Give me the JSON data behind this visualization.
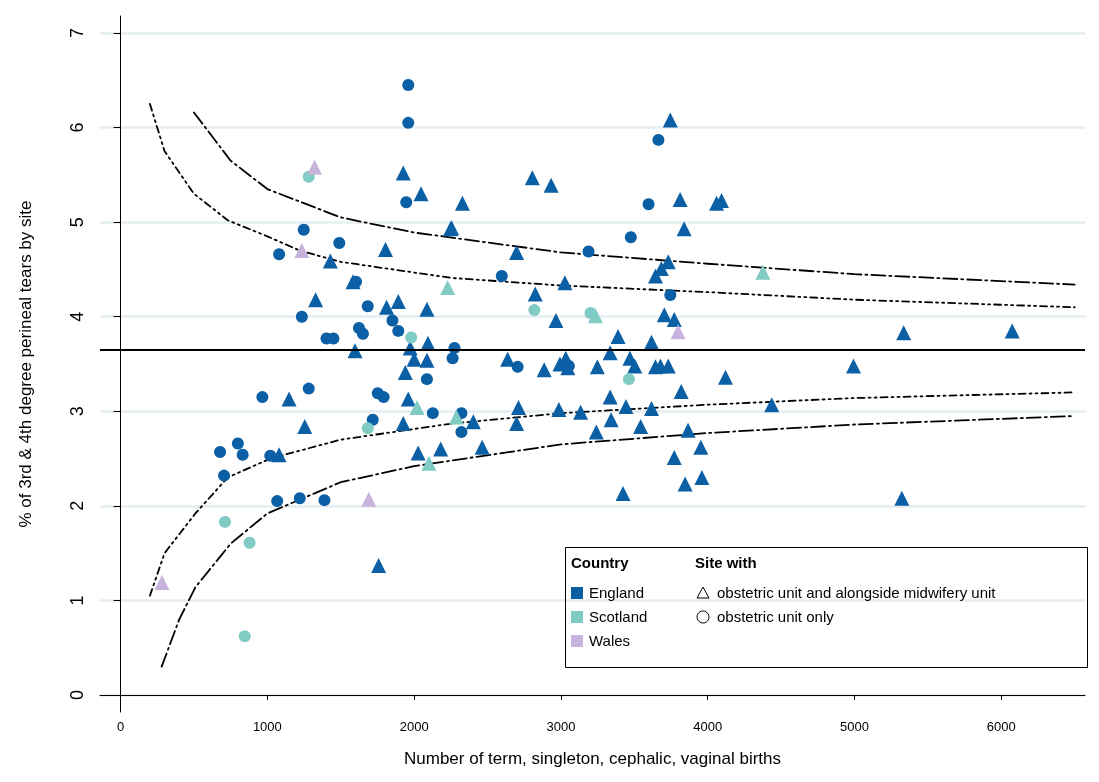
{
  "chart_data": {
    "type": "scatter",
    "xlabel": "Number of term, singleton, cephalic, vaginal births",
    "ylabel": "% of 3rd & 4th degree perineal tears by site",
    "legend_title": "Country",
    "legend": "bottom right",
    "grid": "y",
    "xlim": [
      -140,
      6570
    ],
    "xticks": [
      0,
      1000,
      2000,
      3000,
      4000,
      5000,
      6000
    ],
    "ylim": [
      -0.18,
      7.18
    ],
    "yticks": [
      0,
      1,
      2,
      3,
      4,
      5,
      6,
      7
    ],
    "annotations": [
      "Site with",
      "obstetric unit and alongside midwifery unit",
      "obstetric unit only"
    ],
    "ref_lines": [
      {
        "axis": "y",
        "value": 3.65,
        "color": "#000000",
        "line_style": "solid"
      }
    ],
    "series": [
      {
        "name": "England",
        "color": "#0b5fa5",
        "marker": "triangle",
        "x": [
          1926,
          2047,
          2248,
          1805,
          1429,
          1584,
          1329,
          1812,
          1892,
          2087,
          1597,
          1973,
          2094,
          2000,
          2087,
          1940,
          1960,
          1148,
          1926,
          1255,
          2027,
          2181,
          1080,
          1758,
          3745,
          2805,
          2933,
          2329,
          3812,
          4060,
          4094,
          2255,
          3839,
          2698,
          3731,
          3684,
          3644,
          3027,
          2825,
          3704,
          3772,
          2966,
          3389,
          3617,
          3335,
          2637,
          2886,
          2993,
          3033,
          3047,
          3248,
          3470,
          3503,
          3644,
          3678,
          3731,
          4121,
          3819,
          3335,
          3443,
          3617,
          2711,
          2986,
          3134,
          2403,
          2698,
          3342,
          3543,
          3866,
          3241,
          2463,
          3953,
          3772,
          3960,
          3846,
          3423,
          5335,
          6074,
          4993,
          4436,
          5322
        ],
        "values": [
          5.52,
          5.3,
          4.93,
          4.71,
          4.59,
          4.37,
          4.18,
          4.1,
          4.16,
          4.08,
          3.64,
          3.67,
          3.72,
          3.55,
          3.54,
          3.41,
          3.13,
          3.13,
          2.87,
          2.84,
          2.56,
          2.6,
          2.54,
          1.37,
          6.08,
          5.47,
          5.39,
          5.2,
          5.24,
          5.2,
          5.23,
          4.94,
          4.93,
          4.68,
          4.58,
          4.51,
          4.43,
          4.36,
          4.24,
          4.02,
          3.97,
          3.96,
          3.79,
          3.73,
          3.62,
          3.55,
          3.44,
          3.5,
          3.56,
          3.46,
          3.47,
          3.56,
          3.48,
          3.47,
          3.48,
          3.48,
          3.36,
          3.21,
          3.15,
          3.05,
          3.03,
          3.04,
          3.02,
          2.99,
          2.89,
          2.87,
          2.91,
          2.84,
          2.8,
          2.78,
          2.62,
          2.62,
          2.51,
          2.3,
          2.23,
          2.13,
          3.83,
          3.85,
          3.48,
          3.07,
          2.08
        ]
      },
      {
        "color": "#0b5fa5",
        "marker": "circle",
        "x": [
          1960,
          1960,
          1946,
          1248,
          1490,
          1080,
          1235,
          1604,
          1684,
          1852,
          1892,
          1403,
          1450,
          1624,
          1651,
          2087,
          2275,
          2262,
          966,
          1282,
          1752,
          1792,
          1718,
          2127,
          678,
          799,
          832,
          1020,
          705,
          1067,
          1221,
          1389,
          3664,
          3597,
          3476,
          3188,
          2597,
          3745,
          2705,
          3054,
          2322,
          2322
        ],
        "values": [
          6.45,
          6.05,
          5.21,
          4.92,
          4.78,
          4.66,
          4.0,
          4.37,
          4.11,
          3.96,
          3.85,
          3.77,
          3.77,
          3.88,
          3.82,
          3.34,
          3.67,
          3.56,
          3.15,
          3.24,
          3.19,
          3.15,
          2.91,
          2.98,
          2.57,
          2.66,
          2.54,
          2.53,
          2.32,
          2.05,
          2.08,
          2.06,
          5.87,
          5.19,
          4.84,
          4.69,
          4.43,
          4.23,
          3.47,
          3.48,
          2.98,
          2.78
        ]
      },
      {
        "name": "Scotland",
        "color": "#80cbc4",
        "marker": "triangle",
        "x": [
          2228,
          2020,
          2101,
          2288,
          4376,
          3235
        ],
        "values": [
          4.31,
          3.04,
          2.45,
          2.94,
          4.47,
          4.01
        ]
      },
      {
        "color": "#80cbc4",
        "marker": "circle",
        "x": [
          1282,
          1980,
          1684,
          711,
          879,
          846,
          2819,
          3201,
          3463
        ],
        "values": [
          5.48,
          3.78,
          2.82,
          1.83,
          1.61,
          0.62,
          4.07,
          4.04,
          3.34
        ]
      },
      {
        "name": "Wales",
        "color": "#c8b3dc",
        "marker": "triangle",
        "x": [
          1322,
          1235,
          1691,
          282,
          3798
        ],
        "values": [
          5.58,
          4.7,
          2.07,
          1.19,
          3.84
        ]
      },
      {
        "type": "line",
        "color": "#000000",
        "line_style": "dashed",
        "marker": "none",
        "x": [
          500,
          750,
          1000,
          1500,
          2000,
          3000,
          4000,
          5000,
          6500
        ],
        "values": [
          6.16,
          5.65,
          5.35,
          5.05,
          4.89,
          4.68,
          4.56,
          4.45,
          4.34
        ]
      },
      {
        "type": "line",
        "color": "#000000",
        "line_style": "dashed",
        "marker": "none",
        "x": [
          280,
          400,
          510,
          750,
          1000,
          1500,
          2000,
          3000,
          4000,
          5000,
          6500
        ],
        "values": [
          0.3,
          0.8,
          1.14,
          1.6,
          1.92,
          2.25,
          2.42,
          2.65,
          2.77,
          2.86,
          2.95
        ]
      },
      {
        "type": "line",
        "color": "#000000",
        "line_style": "dotted",
        "marker": "none",
        "x": [
          200,
          300,
          500,
          730,
          1000,
          1220,
          1500,
          2255,
          3000,
          4000,
          5000,
          6500
        ],
        "values": [
          6.25,
          5.75,
          5.3,
          5.02,
          4.85,
          4.7,
          4.58,
          4.41,
          4.33,
          4.26,
          4.18,
          4.1
        ]
      },
      {
        "type": "line",
        "color": "#000000",
        "line_style": "dotted",
        "marker": "none",
        "x": [
          200,
          300,
          510,
          730,
          1020,
          1500,
          2255,
          3000,
          4000,
          5000,
          6500
        ],
        "values": [
          1.05,
          1.5,
          1.92,
          2.3,
          2.5,
          2.7,
          2.87,
          2.98,
          3.07,
          3.14,
          3.2
        ]
      }
    ]
  }
}
